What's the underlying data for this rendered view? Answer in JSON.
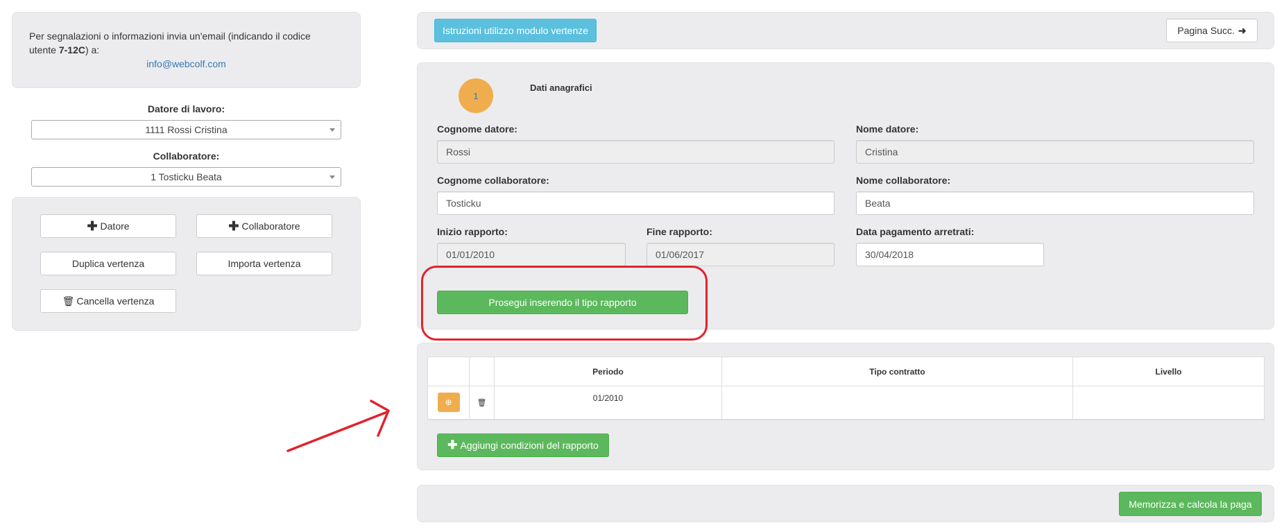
{
  "sidebar": {
    "info_text_pre": "Per segnalazioni o informazioni invia un'email (indicando il codice utente ",
    "user_code": "7-12C",
    "info_text_post": ") a:",
    "email": "info@webcolf.com",
    "employer_label": "Datore di lavoro:",
    "employer_value": "1111 Rossi Cristina",
    "collaborator_label": "Collaboratore:",
    "collaborator_value": "1 Tosticku Beata",
    "buttons": {
      "add_employer": "Datore",
      "add_collaborator": "Collaboratore",
      "duplicate": "Duplica vertenza",
      "import": "Importa vertenza",
      "delete": "Cancella vertenza"
    }
  },
  "topbar": {
    "instructions": "Istruzioni utilizzo modulo vertenze",
    "next_page": "Pagina Succ."
  },
  "form": {
    "step_number": "1",
    "step_title": "Dati anagrafici",
    "employer_surname_label": "Cognome datore:",
    "employer_surname": "Rossi",
    "employer_name_label": "Nome datore:",
    "employer_name": "Cristina",
    "collab_surname_label": "Cognome collaboratore:",
    "collab_surname": "Tosticku",
    "collab_name_label": "Nome collaboratore:",
    "collab_name": "Beata",
    "start_label": "Inizio rapporto:",
    "start": "01/01/2010",
    "end_label": "Fine rapporto:",
    "end": "01/06/2017",
    "payment_label": "Data pagamento arretrati:",
    "payment": "30/04/2018",
    "continue_button": "Prosegui inserendo il tipo rapporto"
  },
  "table": {
    "headers": [
      "",
      "",
      "Periodo",
      "Tipo contratto",
      "Livello"
    ],
    "rows": [
      {
        "periodo": "01/2010",
        "tipo": "",
        "livello": ""
      }
    ],
    "add_button": "Aggiungi condizioni del rapporto"
  },
  "footer": {
    "save_button": "Memorizza e calcola la paga"
  },
  "colors": {
    "green": "#5cb85c",
    "info": "#5bc0de",
    "orange": "#f0ad4e",
    "annotation_red": "#e0232b"
  }
}
